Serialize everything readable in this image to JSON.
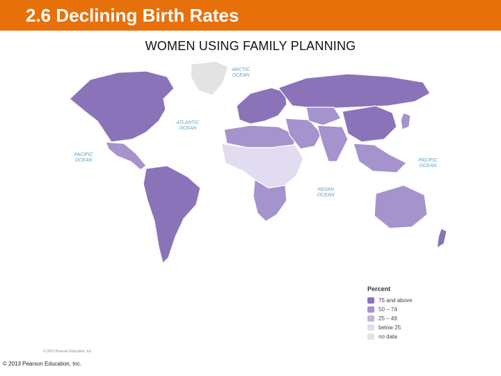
{
  "header": {
    "title": "2.6 Declining Birth Rates"
  },
  "map": {
    "heading": "WOMEN USING FAMILY PLANNING",
    "oceans": [
      {
        "id": "arctic",
        "label": "ARCTIC\nOCEAN"
      },
      {
        "id": "atlantic",
        "label": "ATLANTIC\nOCEAN"
      },
      {
        "id": "pacific-west",
        "label": "PACIFIC\nOCEAN"
      },
      {
        "id": "pacific-east",
        "label": "PACIFIC\nOCEAN"
      },
      {
        "id": "indian",
        "label": "INDIAN\nOCEAN"
      }
    ],
    "regions": [
      {
        "name": "North America",
        "category": "75 and above"
      },
      {
        "name": "Greenland",
        "category": "no data"
      },
      {
        "name": "Mexico and Central America",
        "category": "50 – 74"
      },
      {
        "name": "South America",
        "category": "75 and above"
      },
      {
        "name": "Europe",
        "category": "75 and above"
      },
      {
        "name": "Russia",
        "category": "75 and above"
      },
      {
        "name": "North Africa",
        "category": "50 – 74"
      },
      {
        "name": "Sub-Saharan Africa",
        "category": "below 25"
      },
      {
        "name": "Southern Africa",
        "category": "50 – 74"
      },
      {
        "name": "Middle East",
        "category": "50 – 74"
      },
      {
        "name": "Central Asia",
        "category": "50 – 74"
      },
      {
        "name": "South Asia",
        "category": "50 – 74"
      },
      {
        "name": "China",
        "category": "75 and above"
      },
      {
        "name": "Southeast Asia",
        "category": "50 – 74"
      },
      {
        "name": "Japan",
        "category": "50 – 74"
      },
      {
        "name": "Australia",
        "category": "50 – 74"
      },
      {
        "name": "New Zealand",
        "category": "75 and above"
      }
    ]
  },
  "legend": {
    "title": "Percent",
    "items": [
      {
        "label": "75 and above",
        "color": "#8b73b9"
      },
      {
        "label": "50 – 74",
        "color": "#a593cd"
      },
      {
        "label": "25 – 49",
        "color": "#c3b6de"
      },
      {
        "label": "below 25",
        "color": "#e2dcf0"
      },
      {
        "label": "no data",
        "color": "#e3e3e3"
      }
    ]
  },
  "credits": {
    "inner": "© 2013 Pearson Education, Inc.",
    "footer": "© 2013 Pearson Education, Inc."
  },
  "colors": {
    "title_bar": "#e8700a",
    "ocean_label": "#5fa0c8",
    "coast": "#cfe6f2"
  }
}
